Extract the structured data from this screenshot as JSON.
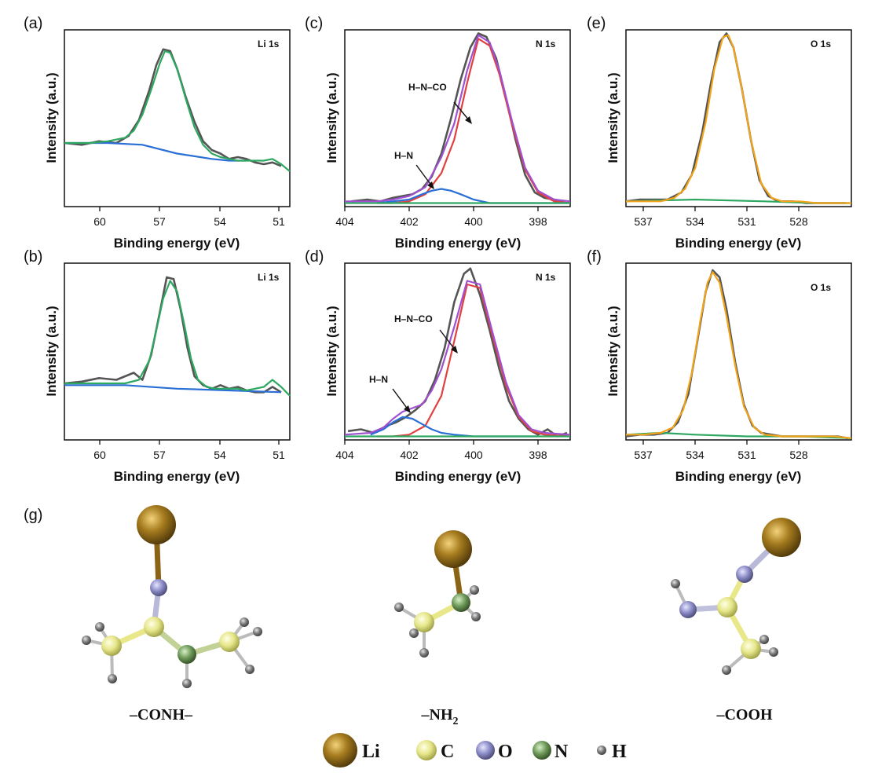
{
  "chart_data": [
    {
      "panel": "(a)",
      "type": "line",
      "title": "Li 1s",
      "xlabel": "Binding energy (eV)",
      "ylabel": "Intensity (a.u.)",
      "xlim": [
        62.5,
        49.5
      ],
      "ylim": [
        0,
        1
      ],
      "xticks": [
        60,
        57,
        54,
        51
      ],
      "grid": false,
      "annotations": [],
      "series": [
        {
          "role": "raw",
          "color": "#555555",
          "x": [
            62.5,
            61.5,
            60.5,
            59.5,
            58.8,
            58.2,
            57.6,
            57.2,
            56.8,
            56.4,
            56.0,
            55.5,
            55.0,
            54.5,
            54.0,
            53.5,
            53.0,
            52.5,
            52.0,
            51.5,
            51.0,
            50.5,
            50.0
          ],
          "y": [
            0.36,
            0.35,
            0.37,
            0.36,
            0.4,
            0.49,
            0.66,
            0.8,
            0.89,
            0.88,
            0.78,
            0.62,
            0.48,
            0.37,
            0.32,
            0.3,
            0.27,
            0.28,
            0.27,
            0.25,
            0.24,
            0.25,
            0.23
          ]
        },
        {
          "role": "background",
          "color": "#2a6fd6",
          "x": [
            62.5,
            60,
            58,
            56,
            54,
            53,
            52
          ],
          "y": [
            0.36,
            0.36,
            0.35,
            0.3,
            0.27,
            0.26,
            0.26
          ]
        },
        {
          "role": "fit",
          "color": "#2ea860",
          "x": [
            62.5,
            61,
            60,
            59,
            58.5,
            58,
            57.5,
            57,
            56.7,
            56.4,
            56,
            55.5,
            55,
            54.5,
            54,
            53.5,
            53,
            52.5,
            52,
            51.5,
            51,
            50.5,
            50,
            49.5
          ],
          "y": [
            0.36,
            0.36,
            0.37,
            0.39,
            0.43,
            0.52,
            0.66,
            0.81,
            0.88,
            0.87,
            0.78,
            0.61,
            0.45,
            0.35,
            0.3,
            0.28,
            0.27,
            0.26,
            0.26,
            0.26,
            0.26,
            0.27,
            0.24,
            0.2
          ]
        }
      ]
    },
    {
      "panel": "(b)",
      "type": "line",
      "title": "Li 1s",
      "xlabel": "Binding energy (eV)",
      "ylabel": "Intensity (a.u.)",
      "xlim": [
        62.5,
        49.5
      ],
      "ylim": [
        0,
        1
      ],
      "xticks": [
        60,
        57,
        54,
        51
      ],
      "grid": false,
      "annotations": [],
      "series": [
        {
          "role": "raw",
          "color": "#555555",
          "x": [
            62.5,
            61.5,
            60.5,
            59.5,
            58.5,
            58.0,
            57.5,
            57.0,
            56.6,
            56.2,
            55.8,
            55.4,
            55.0,
            54.5,
            54.0,
            53.5,
            53.0,
            52.5,
            52.0,
            51.5,
            51.0,
            50.5,
            50.0
          ],
          "y": [
            0.32,
            0.33,
            0.35,
            0.34,
            0.38,
            0.34,
            0.48,
            0.72,
            0.92,
            0.91,
            0.74,
            0.52,
            0.36,
            0.31,
            0.29,
            0.31,
            0.29,
            0.3,
            0.28,
            0.27,
            0.27,
            0.3,
            0.27
          ]
        },
        {
          "role": "background",
          "color": "#2a6fd6",
          "x": [
            62.5,
            59,
            56,
            53,
            50
          ],
          "y": [
            0.31,
            0.31,
            0.29,
            0.28,
            0.27
          ]
        },
        {
          "role": "fit",
          "color": "#2ea860",
          "x": [
            62.5,
            61,
            60,
            59,
            58.2,
            57.6,
            57.2,
            56.8,
            56.4,
            56.0,
            55.6,
            55.2,
            54.8,
            54.3,
            53.8,
            53,
            52.5,
            52,
            51.5,
            51,
            50.5,
            50,
            49.5
          ],
          "y": [
            0.32,
            0.32,
            0.32,
            0.32,
            0.34,
            0.45,
            0.62,
            0.8,
            0.9,
            0.84,
            0.66,
            0.46,
            0.34,
            0.3,
            0.29,
            0.29,
            0.29,
            0.28,
            0.29,
            0.3,
            0.34,
            0.3,
            0.25
          ]
        }
      ]
    },
    {
      "panel": "(c)",
      "type": "line",
      "title": "N 1s",
      "xlabel": "Binding energy (eV)",
      "ylabel": "Intensity (a.u.)",
      "xlim": [
        404,
        397
      ],
      "ylim": [
        0,
        1
      ],
      "xticks": [
        404,
        402,
        400,
        398
      ],
      "grid": false,
      "annotations": [
        {
          "text": "H–N–CO"
        },
        {
          "text": "H–N"
        }
      ],
      "series": [
        {
          "role": "raw",
          "color": "#555555",
          "x": [
            403.8,
            403.3,
            402.9,
            402.5,
            402.2,
            401.9,
            401.6,
            401.3,
            401.0,
            400.7,
            400.4,
            400.1,
            399.85,
            399.6,
            399.3,
            399.0,
            398.7,
            398.4,
            398.1,
            397.8,
            397.5,
            397.2
          ],
          "y": [
            0.03,
            0.04,
            0.03,
            0.05,
            0.06,
            0.07,
            0.1,
            0.17,
            0.3,
            0.5,
            0.72,
            0.9,
            0.98,
            0.96,
            0.84,
            0.62,
            0.38,
            0.18,
            0.08,
            0.05,
            0.04,
            0.03
          ]
        },
        {
          "role": "fit H–N–CO",
          "color": "#e04040",
          "x": [
            403,
            402.5,
            402,
            401.5,
            401,
            400.6,
            400.2,
            399.85,
            399.5,
            399.2,
            398.8,
            398.4,
            398,
            397.5,
            397
          ],
          "y": [
            0.02,
            0.02,
            0.03,
            0.07,
            0.19,
            0.38,
            0.7,
            0.95,
            0.91,
            0.75,
            0.46,
            0.21,
            0.08,
            0.03,
            0.02
          ]
        },
        {
          "role": "fit H–N",
          "color": "#2a6fd6",
          "x": [
            403,
            402.5,
            402,
            401.6,
            401.3,
            401.0,
            400.7,
            400.4,
            400.0,
            399.5,
            398.5,
            397
          ],
          "y": [
            0.02,
            0.03,
            0.04,
            0.07,
            0.09,
            0.1,
            0.09,
            0.07,
            0.04,
            0.02,
            0.02,
            0.02
          ]
        },
        {
          "role": "background",
          "color": "#2ea860",
          "x": [
            404,
            397
          ],
          "y": [
            0.02,
            0.02
          ]
        },
        {
          "role": "envelope",
          "color": "#a050d0",
          "x": [
            404,
            403,
            402.5,
            402,
            401.5,
            401,
            400.6,
            400.2,
            399.85,
            399.5,
            399.2,
            398.8,
            398.4,
            398,
            397.5,
            397
          ],
          "y": [
            0.03,
            0.03,
            0.04,
            0.06,
            0.11,
            0.28,
            0.47,
            0.77,
            0.97,
            0.93,
            0.77,
            0.48,
            0.22,
            0.09,
            0.04,
            0.03
          ]
        }
      ]
    },
    {
      "panel": "(d)",
      "type": "line",
      "title": "N 1s",
      "xlabel": "Binding energy (eV)",
      "ylabel": "Intensity (a.u.)",
      "xlim": [
        404,
        397
      ],
      "ylim": [
        0,
        1
      ],
      "xticks": [
        404,
        402,
        400,
        398
      ],
      "grid": false,
      "annotations": [
        {
          "text": "H–N–CO"
        },
        {
          "text": "H–N"
        }
      ],
      "series": [
        {
          "role": "raw",
          "color": "#555555",
          "x": [
            403.9,
            403.5,
            403.1,
            402.7,
            402.4,
            402.1,
            401.8,
            401.5,
            401.2,
            400.9,
            400.6,
            400.3,
            400.1,
            399.8,
            399.5,
            399.2,
            398.9,
            398.6,
            398.3,
            398.0,
            397.7,
            397.4,
            397.1
          ],
          "y": [
            0.05,
            0.06,
            0.04,
            0.08,
            0.1,
            0.13,
            0.17,
            0.22,
            0.34,
            0.52,
            0.78,
            0.94,
            0.97,
            0.82,
            0.62,
            0.4,
            0.22,
            0.12,
            0.06,
            0.03,
            0.06,
            0.02,
            0.04
          ]
        },
        {
          "role": "fit H–N–CO",
          "color": "#e04040",
          "x": [
            403,
            402.5,
            402,
            401.5,
            401,
            400.6,
            400.2,
            399.8,
            399.4,
            399,
            398.6,
            398.2,
            397.8,
            397
          ],
          "y": [
            0.02,
            0.02,
            0.03,
            0.08,
            0.25,
            0.56,
            0.88,
            0.86,
            0.58,
            0.31,
            0.13,
            0.05,
            0.03,
            0.02
          ]
        },
        {
          "role": "fit H–N",
          "color": "#2a6fd6",
          "x": [
            403.2,
            402.8,
            402.5,
            402.2,
            401.9,
            401.6,
            401.3,
            401.0,
            400.6,
            400,
            398
          ],
          "y": [
            0.03,
            0.06,
            0.1,
            0.13,
            0.12,
            0.09,
            0.06,
            0.04,
            0.03,
            0.02,
            0.02
          ]
        },
        {
          "role": "background",
          "color": "#2ea860",
          "x": [
            404,
            397
          ],
          "y": [
            0.02,
            0.02
          ]
        },
        {
          "role": "envelope",
          "color": "#a050d0",
          "x": [
            404,
            403.2,
            402.8,
            402.5,
            402.2,
            401.9,
            401.6,
            401.3,
            401,
            400.6,
            400.2,
            399.8,
            399.4,
            399,
            398.6,
            398.2,
            397.8,
            397
          ],
          "y": [
            0.03,
            0.04,
            0.07,
            0.12,
            0.16,
            0.18,
            0.2,
            0.28,
            0.4,
            0.64,
            0.9,
            0.88,
            0.6,
            0.33,
            0.14,
            0.06,
            0.04,
            0.03
          ]
        }
      ]
    },
    {
      "panel": "(e)",
      "type": "line",
      "title": "O 1s",
      "xlabel": "Binding energy (eV)",
      "ylabel": "Intensity (a.u.)",
      "xlim": [
        538,
        525
      ],
      "ylim": [
        0,
        1
      ],
      "xticks": [
        537,
        534,
        531,
        528
      ],
      "grid": false,
      "annotations": [],
      "series": [
        {
          "role": "raw",
          "color": "#555555",
          "x": [
            538,
            537.2,
            536.4,
            535.6,
            534.8,
            534.2,
            533.6,
            533.1,
            532.6,
            532.2,
            531.8,
            531.3,
            530.8,
            530.3,
            529.8,
            529.2,
            528.4,
            527.6,
            526.8,
            526,
            525.3
          ],
          "y": [
            0.03,
            0.04,
            0.04,
            0.04,
            0.08,
            0.18,
            0.42,
            0.7,
            0.93,
            0.98,
            0.9,
            0.66,
            0.38,
            0.15,
            0.06,
            0.03,
            0.03,
            0.02,
            0.02,
            0.02,
            0.02
          ]
        },
        {
          "role": "background",
          "color": "#2ea860",
          "x": [
            538,
            534,
            530,
            527,
            525
          ],
          "y": [
            0.03,
            0.04,
            0.03,
            0.02,
            0.02
          ]
        },
        {
          "role": "fit",
          "color": "#f2a41a",
          "x": [
            538,
            537,
            536,
            535.2,
            534.6,
            534,
            533.4,
            532.9,
            532.4,
            532.1,
            531.8,
            531.3,
            530.8,
            530.2,
            529.6,
            529,
            528,
            527,
            526,
            525
          ],
          "y": [
            0.03,
            0.03,
            0.03,
            0.05,
            0.1,
            0.22,
            0.48,
            0.78,
            0.96,
            0.97,
            0.9,
            0.66,
            0.38,
            0.13,
            0.05,
            0.03,
            0.03,
            0.02,
            0.02,
            0.02
          ]
        }
      ]
    },
    {
      "panel": "(f)",
      "type": "line",
      "title": "O 1s",
      "xlabel": "Binding energy (eV)",
      "ylabel": "Intensity (a.u.)",
      "xlim": [
        538,
        525
      ],
      "ylim": [
        0,
        1
      ],
      "xticks": [
        537,
        534,
        531,
        528
      ],
      "grid": false,
      "annotations": [],
      "series": [
        {
          "role": "raw",
          "color": "#555555",
          "x": [
            538,
            537.2,
            536.4,
            535.6,
            535,
            534.4,
            533.9,
            533.4,
            533,
            532.6,
            532.2,
            531.7,
            531.2,
            530.7,
            530.2,
            529.6,
            529,
            528.2,
            527.4,
            526.6,
            525.8,
            525.2
          ],
          "y": [
            0.02,
            0.03,
            0.03,
            0.04,
            0.1,
            0.26,
            0.55,
            0.84,
            0.96,
            0.92,
            0.74,
            0.44,
            0.2,
            0.08,
            0.04,
            0.03,
            0.02,
            0.02,
            0.02,
            0.02,
            0.02,
            0.01
          ]
        },
        {
          "role": "background",
          "color": "#2ea860",
          "x": [
            538,
            536,
            534,
            531,
            528,
            525
          ],
          "y": [
            0.03,
            0.04,
            0.03,
            0.02,
            0.02,
            0.01
          ]
        },
        {
          "role": "fit",
          "color": "#f2a41a",
          "x": [
            538,
            537,
            536,
            535.3,
            534.7,
            534.2,
            533.7,
            533.3,
            533.0,
            532.6,
            532.2,
            531.7,
            531.2,
            530.6,
            530,
            529,
            528,
            527,
            526,
            525
          ],
          "y": [
            0.03,
            0.03,
            0.04,
            0.07,
            0.17,
            0.38,
            0.68,
            0.89,
            0.95,
            0.89,
            0.7,
            0.42,
            0.19,
            0.07,
            0.03,
            0.02,
            0.02,
            0.02,
            0.02,
            0.01
          ]
        }
      ]
    }
  ],
  "panels": {
    "a": {
      "letter": "(a)",
      "title": "Li 1s",
      "xlabel": "Binding energy (eV)",
      "ylabel": "Intensity (a.u.)",
      "ticks": [
        "60",
        "57",
        "54",
        "51"
      ]
    },
    "b": {
      "letter": "(b)",
      "title": "Li 1s",
      "xlabel": "Binding energy (eV)",
      "ylabel": "Intensity (a.u.)",
      "ticks": [
        "60",
        "57",
        "54",
        "51"
      ]
    },
    "c": {
      "letter": "(c)",
      "title": "N 1s",
      "xlabel": "Binding energy (eV)",
      "ylabel": "Intensity (a.u.)",
      "ticks": [
        "404",
        "402",
        "400",
        "398"
      ],
      "ann1": "H–N–CO",
      "ann2": "H–N"
    },
    "d": {
      "letter": "(d)",
      "title": "N 1s",
      "xlabel": "Binding energy (eV)",
      "ylabel": "Intensity (a.u.)",
      "ticks": [
        "404",
        "402",
        "400",
        "398"
      ],
      "ann1": "H–N–CO",
      "ann2": "H–N"
    },
    "e": {
      "letter": "(e)",
      "title": "O 1s",
      "xlabel": "Binding energy (eV)",
      "ylabel": "Intensity (a.u.)",
      "ticks": [
        "537",
        "534",
        "531",
        "528"
      ]
    },
    "f": {
      "letter": "(f)",
      "title": "O 1s",
      "xlabel": "Binding energy (eV)",
      "ylabel": "Intensity (a.u.)",
      "ticks": [
        "537",
        "534",
        "531",
        "528"
      ]
    }
  },
  "g": {
    "letter": "(g)",
    "molecules": [
      {
        "label_main": "–CONH–",
        "label_sub": ""
      },
      {
        "label_main": "–NH",
        "label_sub": "2"
      },
      {
        "label_main": "–COOH",
        "label_sub": ""
      }
    ],
    "legend": [
      "Li",
      "C",
      "O",
      "N",
      "H"
    ],
    "atom_colors": {
      "Li": "#8a6414",
      "C": "#e8e88a",
      "O": "#8a8ac8",
      "N": "#6e9a5a",
      "H": "#7a7a7a"
    }
  }
}
